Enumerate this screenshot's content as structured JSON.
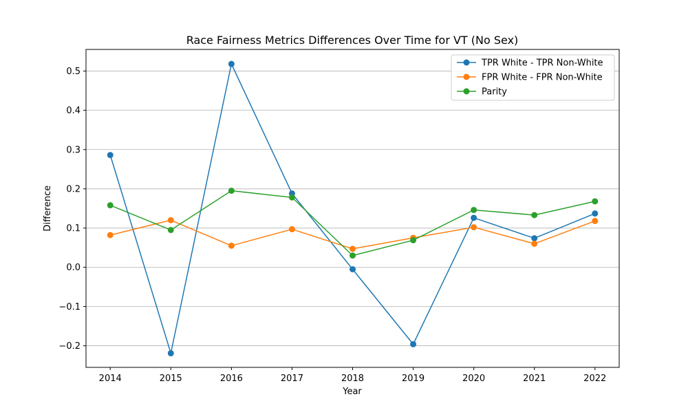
{
  "chart_data": {
    "type": "line",
    "title": "Race Fairness Metrics Differences Over Time for VT (No Sex)",
    "xlabel": "Year",
    "ylabel": "Difference",
    "x": [
      2014,
      2015,
      2016,
      2017,
      2018,
      2019,
      2020,
      2021,
      2022
    ],
    "x_tick_labels": [
      "2014",
      "2015",
      "2016",
      "2017",
      "2018",
      "2019",
      "2020",
      "2021",
      "2022"
    ],
    "ylim": [
      -0.255,
      0.555
    ],
    "y_ticks": [
      -0.2,
      -0.1,
      0.0,
      0.1,
      0.2,
      0.3,
      0.4,
      0.5
    ],
    "y_tick_labels": [
      "−0.2",
      "−0.1",
      "0.0",
      "0.1",
      "0.2",
      "0.3",
      "0.4",
      "0.5"
    ],
    "grid": "horizontal",
    "legend_position": "top-right",
    "series": [
      {
        "name": "TPR White - TPR Non-White",
        "color": "#1f77b4",
        "values": [
          0.286,
          -0.219,
          0.518,
          0.188,
          -0.005,
          -0.196,
          0.126,
          0.074,
          0.137
        ]
      },
      {
        "name": "FPR White - FPR Non-White",
        "color": "#ff7f0e",
        "values": [
          0.082,
          0.12,
          0.055,
          0.097,
          0.047,
          0.075,
          0.102,
          0.06,
          0.118
        ]
      },
      {
        "name": "Parity",
        "color": "#2ca02c",
        "values": [
          0.158,
          0.095,
          0.195,
          0.178,
          0.03,
          0.069,
          0.146,
          0.133,
          0.168
        ]
      }
    ]
  }
}
